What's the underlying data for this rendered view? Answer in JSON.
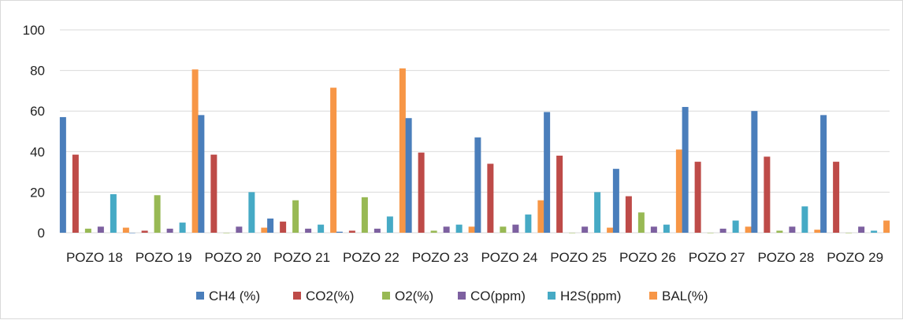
{
  "chart_data": {
    "type": "bar",
    "title": "",
    "xlabel": "",
    "ylabel": "",
    "ylim": [
      0,
      100
    ],
    "yticks": [
      0,
      20,
      40,
      60,
      80,
      100
    ],
    "grid": true,
    "legend_position": "bottom",
    "categories": [
      "POZO 18",
      "POZO 19",
      "POZO 20",
      "POZO 21",
      "POZO 22",
      "POZO 23",
      "POZO 24",
      "POZO 25",
      "POZO 26",
      "POZO 27",
      "POZO 28",
      "POZO 29"
    ],
    "series": [
      {
        "name": "CH4 (%)",
        "color": "#4a7ebb",
        "values": [
          57,
          0,
          58,
          7,
          0.5,
          56.5,
          47,
          59.5,
          31.5,
          62,
          60,
          58
        ]
      },
      {
        "name": "CO2(%)",
        "color": "#be4b48",
        "values": [
          38.5,
          1,
          38.5,
          5.5,
          1,
          39.5,
          34,
          38,
          18,
          35,
          37.5,
          35
        ]
      },
      {
        "name": "O2(%)",
        "color": "#98b954",
        "values": [
          2,
          18.5,
          0,
          16,
          17.5,
          1,
          3,
          0,
          10,
          0,
          1,
          0
        ]
      },
      {
        "name": "CO(ppm)",
        "color": "#7d60a0",
        "values": [
          3,
          2,
          3,
          2,
          2,
          3,
          4,
          3,
          3,
          2,
          3,
          3
        ]
      },
      {
        "name": "H2S(ppm)",
        "color": "#46aac5",
        "values": [
          19,
          5,
          20,
          4,
          8,
          4,
          9,
          20,
          4,
          6,
          13,
          1
        ]
      },
      {
        "name": "BAL(%)",
        "color": "#f79646",
        "values": [
          2.5,
          80.5,
          2.5,
          71.5,
          81,
          3,
          16,
          2.5,
          41,
          3,
          1.5,
          6
        ]
      }
    ]
  }
}
